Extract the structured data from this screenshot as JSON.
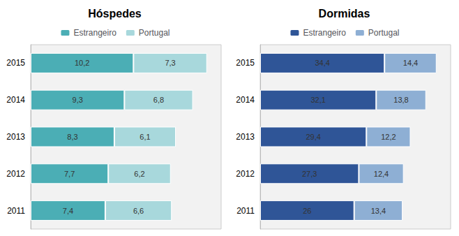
{
  "chart_data": [
    {
      "type": "bar",
      "title": "Hóspedes",
      "orientation": "horizontal",
      "stacked": true,
      "data_labels": true,
      "tick_labels": "y",
      "grid": false,
      "legend": "top",
      "categories": [
        "2015",
        "2014",
        "2013",
        "2012",
        "2011"
      ],
      "xlim": [
        0,
        18.9
      ],
      "series": [
        {
          "name": "Estrangeiro",
          "color": "#4BAEB5",
          "values": [
            10.2,
            9.3,
            8.3,
            7.7,
            7.4
          ],
          "value_labels": [
            "10,2",
            "9,3",
            "8,3",
            "7,7",
            "7,4"
          ]
        },
        {
          "name": "Portugal",
          "color": "#A8D8DC",
          "values": [
            7.3,
            6.8,
            6.1,
            6.2,
            6.6
          ],
          "value_labels": [
            "7,3",
            "6,8",
            "6,1",
            "6,2",
            "6,6"
          ]
        }
      ]
    },
    {
      "type": "bar",
      "title": "Dormidas",
      "orientation": "horizontal",
      "stacked": true,
      "data_labels": true,
      "tick_labels": "y",
      "grid": false,
      "legend": "top",
      "categories": [
        "2015",
        "2014",
        "2013",
        "2012",
        "2011"
      ],
      "xlim": [
        0,
        52.704
      ],
      "series": [
        {
          "name": "Estrangeiro",
          "color": "#2F5597",
          "values": [
            34.4,
            32.1,
            29.4,
            27.3,
            26.0
          ],
          "value_labels": [
            "34,4",
            "32,1",
            "29,4",
            "27,3",
            "26"
          ]
        },
        {
          "name": "Portugal",
          "color": "#8EAFD4",
          "values": [
            14.4,
            13.8,
            12.2,
            12.4,
            13.4
          ],
          "value_labels": [
            "14,4",
            "13,8",
            "12,2",
            "12,4",
            "13,4"
          ]
        }
      ]
    }
  ]
}
